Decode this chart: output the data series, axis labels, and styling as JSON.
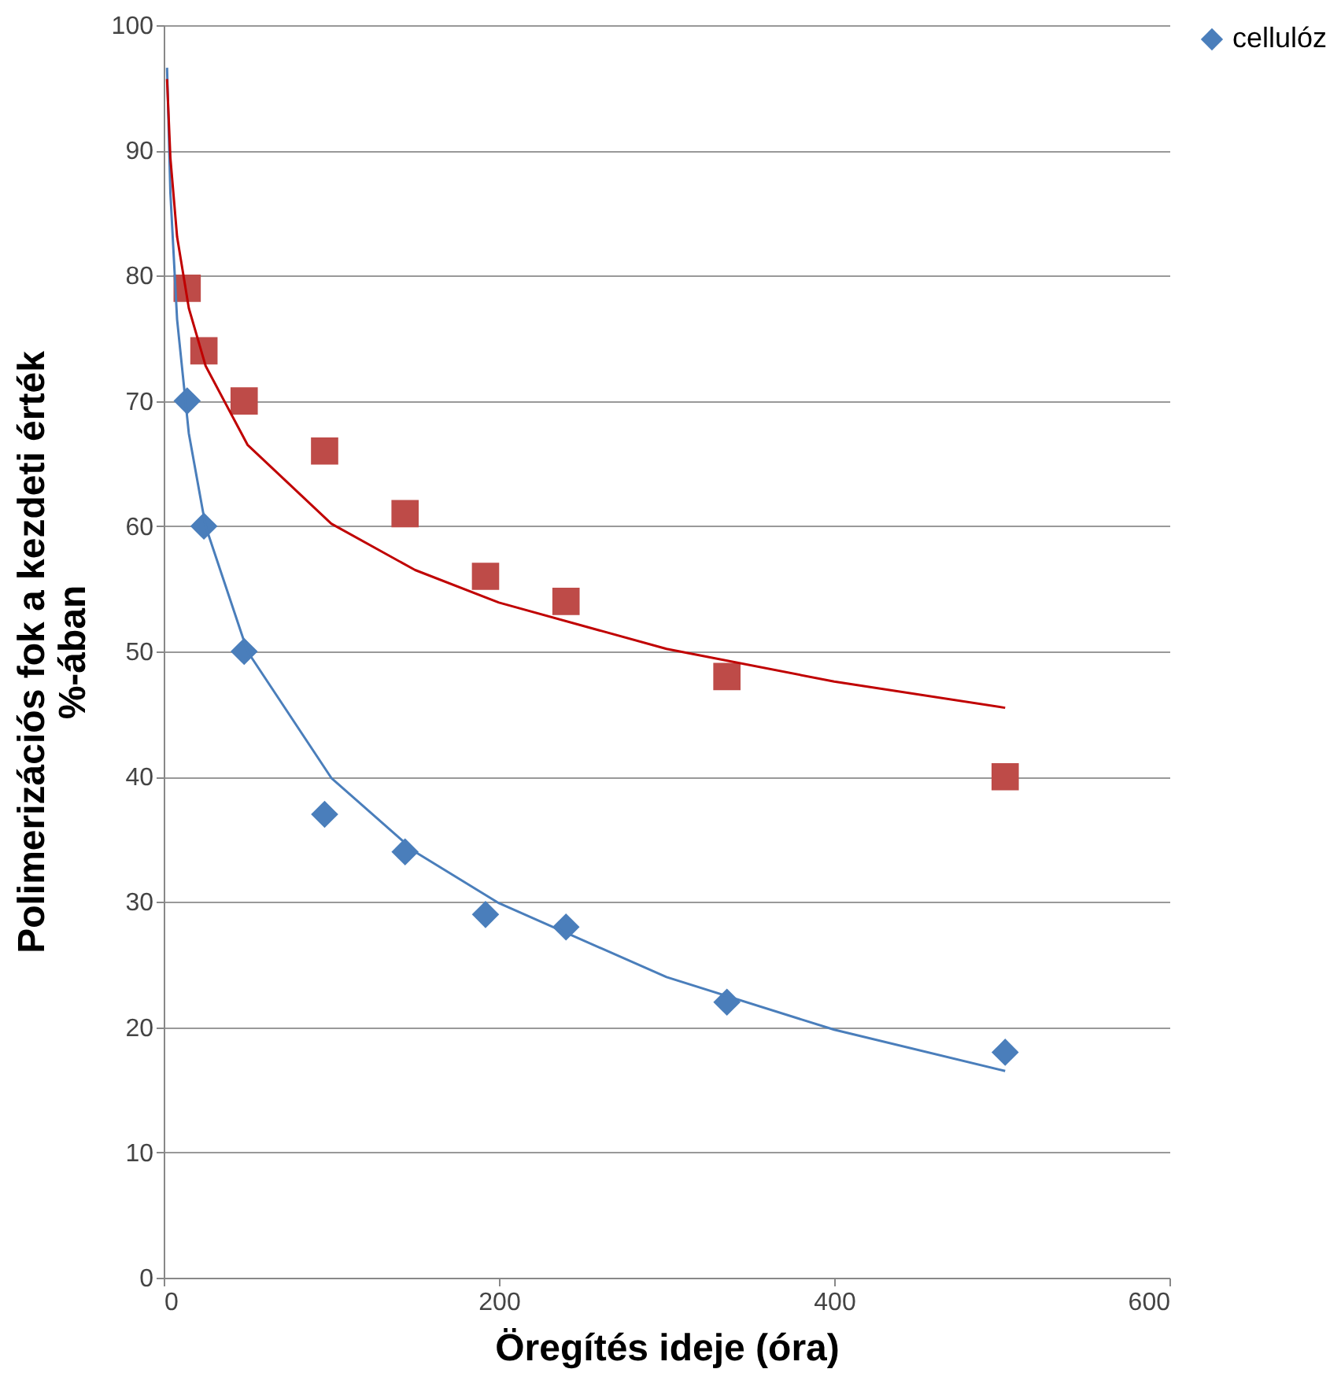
{
  "chart_data": {
    "type": "scatter",
    "xlabel": "Öregítés ideje (óra)",
    "ylabel": "Polimerizációs fok a kezdeti érték %-ában",
    "xlim": [
      0,
      600
    ],
    "xticks": [
      0,
      200,
      400,
      600
    ],
    "ylim": [
      0,
      100
    ],
    "yticks": [
      0,
      10,
      20,
      30,
      40,
      50,
      60,
      70,
      80,
      90,
      100
    ],
    "grid": "y",
    "legend": "right",
    "series": [
      {
        "name": "cellulóz",
        "color": "#4a7ebb",
        "marker": "diamond",
        "x": [
          14,
          24,
          48,
          96,
          144,
          192,
          240,
          336,
          502
        ],
        "values": [
          70,
          60,
          50,
          37,
          34,
          29,
          28,
          22,
          18
        ]
      },
      {
        "color": "#be4b48",
        "marker": "square",
        "x": [
          14,
          24,
          48,
          96,
          144,
          192,
          240,
          336,
          502
        ],
        "values": [
          79,
          74,
          70,
          66,
          61,
          56,
          54,
          48,
          40
        ]
      },
      {
        "type": "line",
        "color": "#4a7ebb",
        "marker": "none",
        "x": [
          2,
          4,
          8,
          15,
          25,
          50,
          100,
          150,
          200,
          300,
          400,
          502
        ],
        "values": [
          96.6,
          86.6,
          76.5,
          67.4,
          60.0,
          50.0,
          39.9,
          34.0,
          29.9,
          24.0,
          19.8,
          16.5
        ]
      },
      {
        "type": "line",
        "color": "#c00000",
        "marker": "none",
        "x": [
          2,
          4,
          8,
          15,
          25,
          50,
          100,
          150,
          200,
          300,
          400,
          502
        ],
        "values": [
          95.7,
          89.4,
          83.1,
          77.4,
          72.8,
          66.5,
          60.2,
          56.5,
          53.9,
          50.2,
          47.6,
          45.5
        ]
      }
    ]
  }
}
